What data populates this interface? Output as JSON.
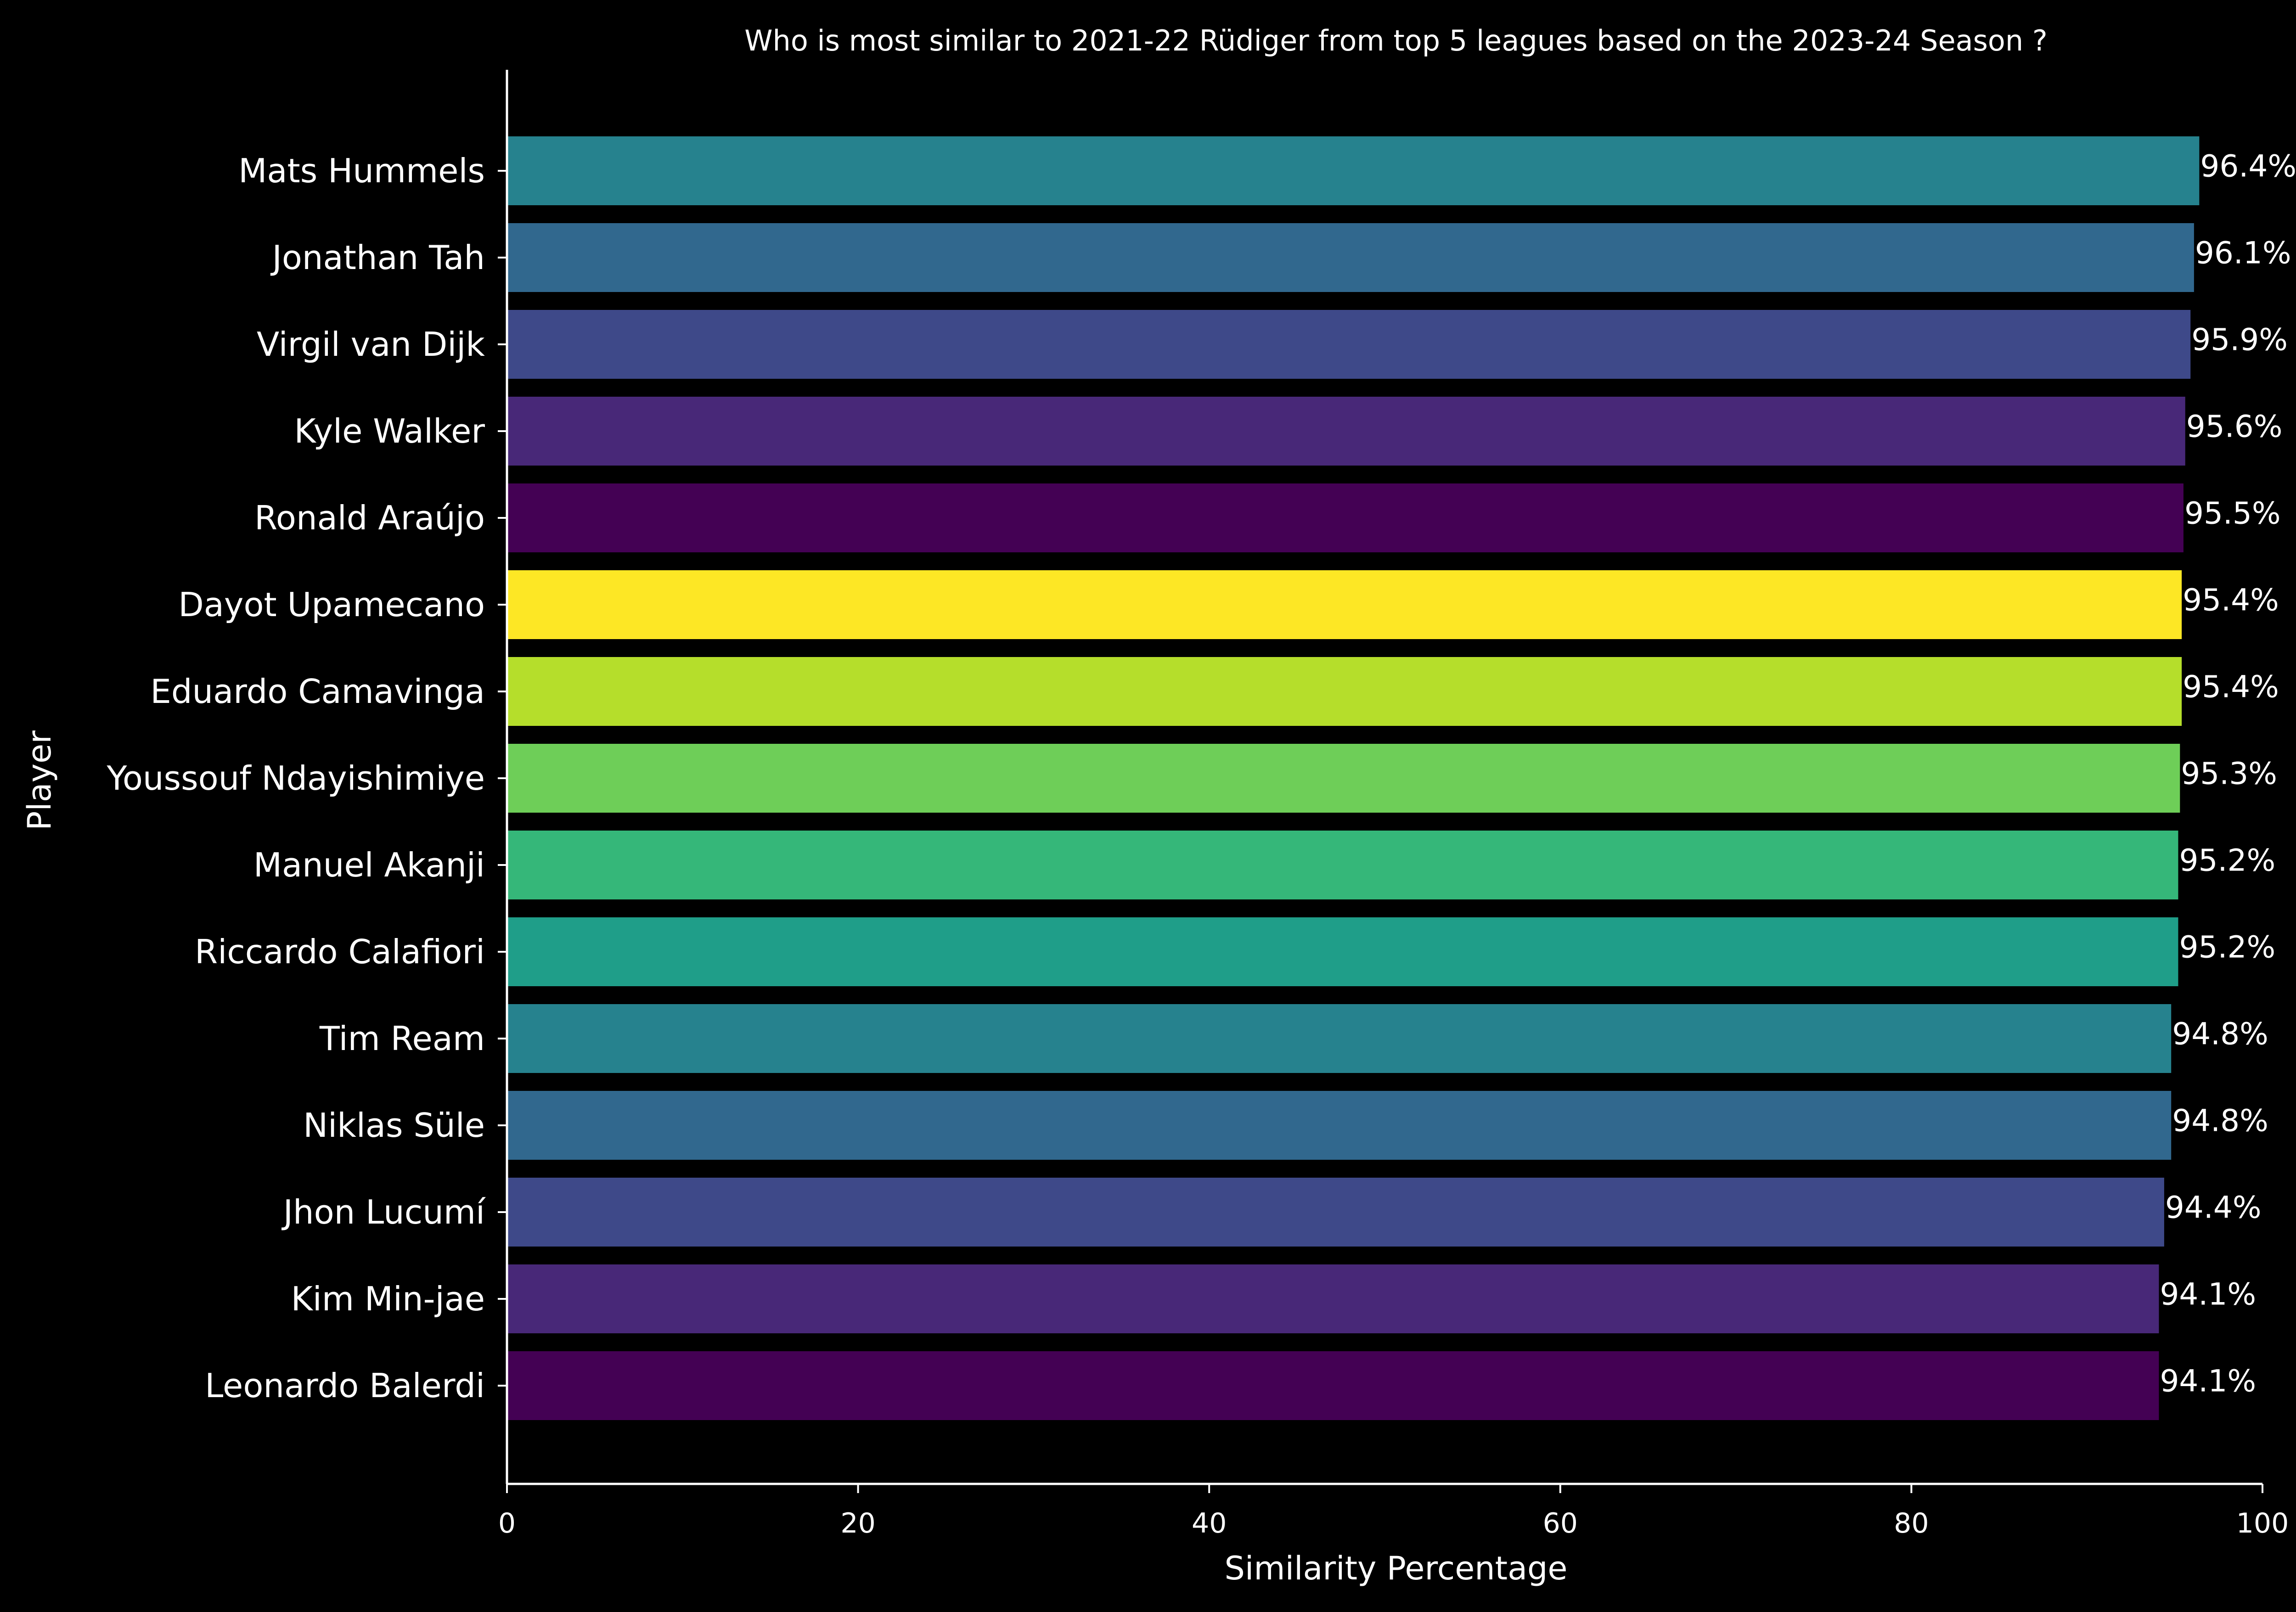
{
  "chart_data": {
    "type": "bar",
    "orientation": "horizontal",
    "title": "Who is most similar to 2021-22 Rüdiger from top 5 leagues based on the 2023-24 Season ?",
    "xlabel": "Similarity Percentage",
    "ylabel": "Player",
    "xlim": [
      0,
      100
    ],
    "xticks": [
      0,
      20,
      40,
      60,
      80,
      100
    ],
    "grid": false,
    "categories": [
      "Mats Hummels",
      "Jonathan Tah",
      "Virgil van Dijk",
      "Kyle Walker",
      "Ronald Araújo",
      "Dayot Upamecano",
      "Eduardo Camavinga",
      "Youssouf Ndayishimiye",
      "Manuel Akanji",
      "Riccardo Calafiori",
      "Tim Ream",
      "Niklas Süle",
      "Jhon Lucumí",
      "Kim Min-jae",
      "Leonardo Balerdi"
    ],
    "values": [
      96.4,
      96.1,
      95.9,
      95.6,
      95.5,
      95.4,
      95.4,
      95.3,
      95.2,
      95.2,
      94.8,
      94.8,
      94.4,
      94.1,
      94.1
    ],
    "value_labels": [
      "96.4%",
      "96.1%",
      "95.9%",
      "95.6%",
      "95.5%",
      "95.4%",
      "95.4%",
      "95.3%",
      "95.2%",
      "95.2%",
      "94.8%",
      "94.8%",
      "94.4%",
      "94.1%",
      "94.1%"
    ],
    "colors": [
      "#26828e",
      "#31688e",
      "#3e4989",
      "#482878",
      "#440154",
      "#fde725",
      "#b5de2b",
      "#6ece58",
      "#35b779",
      "#1f9e89",
      "#26828e",
      "#31688e",
      "#3e4989",
      "#482878",
      "#440154"
    ],
    "background": "#000000",
    "text_color": "#ffffff"
  }
}
